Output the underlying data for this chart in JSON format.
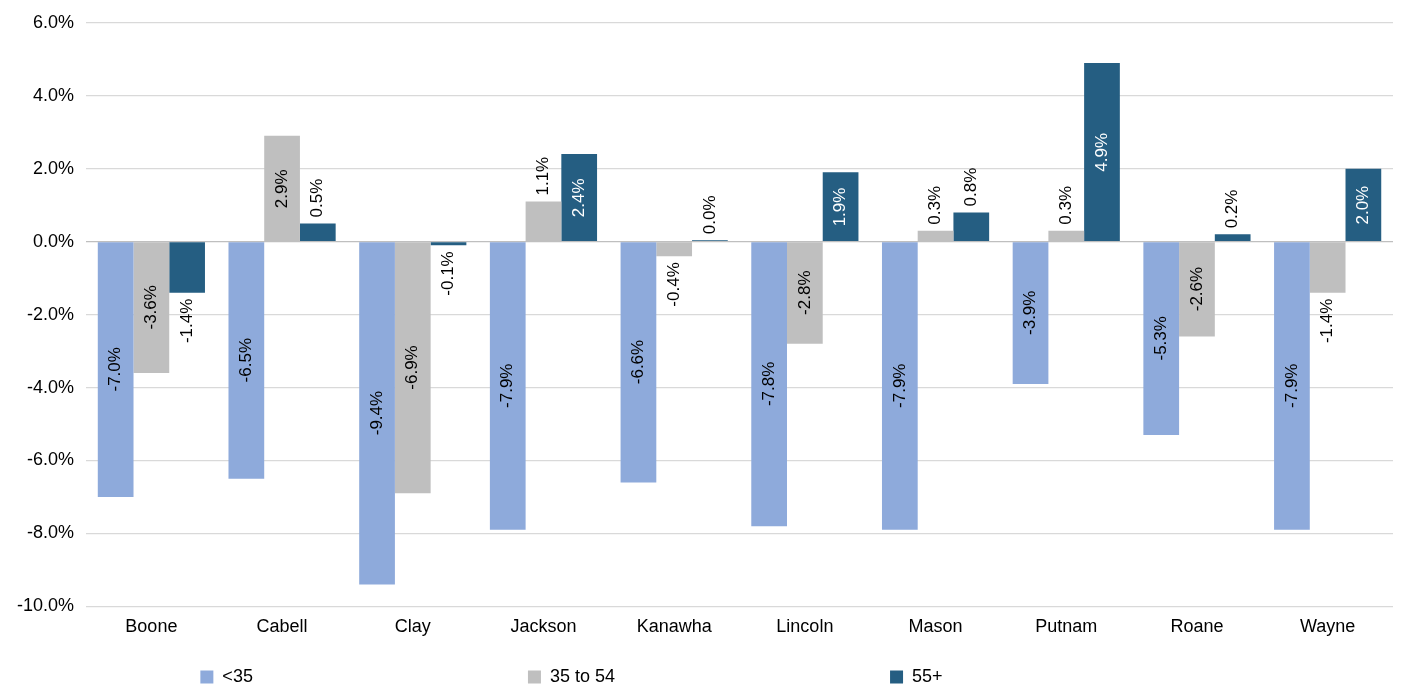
{
  "chart_data": {
    "type": "bar",
    "categories": [
      "Boone",
      "Cabell",
      "Clay",
      "Jackson",
      "Kanawha",
      "Lincoln",
      "Mason",
      "Putnam",
      "Roane",
      "Wayne"
    ],
    "series": [
      {
        "name": "<35",
        "color": "#8eaadb",
        "values": [
          -7.0,
          -6.5,
          -9.4,
          -7.9,
          -6.6,
          -7.8,
          -7.9,
          -3.9,
          -5.3,
          -7.9
        ],
        "value_labels": [
          "-7.0%",
          "-6.5%",
          "-9.4%",
          "-7.9%",
          "-6.6%",
          "-7.8%",
          "-7.9%",
          "-3.9%",
          "-5.3%",
          "-7.9%"
        ]
      },
      {
        "name": "35 to 54",
        "color": "#bfbfbf",
        "values": [
          -3.6,
          2.9,
          -6.9,
          1.1,
          -0.4,
          -2.8,
          0.3,
          0.3,
          -2.6,
          -1.4
        ],
        "value_labels": [
          "-3.6%",
          "2.9%",
          "-6.9%",
          "1.1%",
          "-0.4%",
          "-2.8%",
          "0.3%",
          "0.3%",
          "-2.6%",
          "-1.4%"
        ]
      },
      {
        "name": "55+",
        "color": "#255e82",
        "values": [
          -1.4,
          0.5,
          -0.1,
          2.4,
          0.04,
          1.9,
          0.8,
          4.9,
          0.2,
          2.0
        ],
        "value_labels": [
          "-1.4%",
          "0.5%",
          "-0.1%",
          "2.4%",
          "0.0%",
          "1.9%",
          "0.8%",
          "4.9%",
          "0.2%",
          "2.0%"
        ]
      }
    ],
    "ylim": [
      -10,
      6
    ],
    "yticks": [
      {
        "value": -10,
        "label": "-10.0%"
      },
      {
        "value": -8,
        "label": "-8.0%"
      },
      {
        "value": -6,
        "label": "-6.0%"
      },
      {
        "value": -4,
        "label": "-4.0%"
      },
      {
        "value": -2,
        "label": "-2.0%"
      },
      {
        "value": 0,
        "label": "0.0%"
      },
      {
        "value": 2,
        "label": "2.0%"
      },
      {
        "value": 4,
        "label": "4.0%"
      },
      {
        "value": 6,
        "label": "6.0%"
      }
    ],
    "grid": "y",
    "legend": "bottom"
  }
}
